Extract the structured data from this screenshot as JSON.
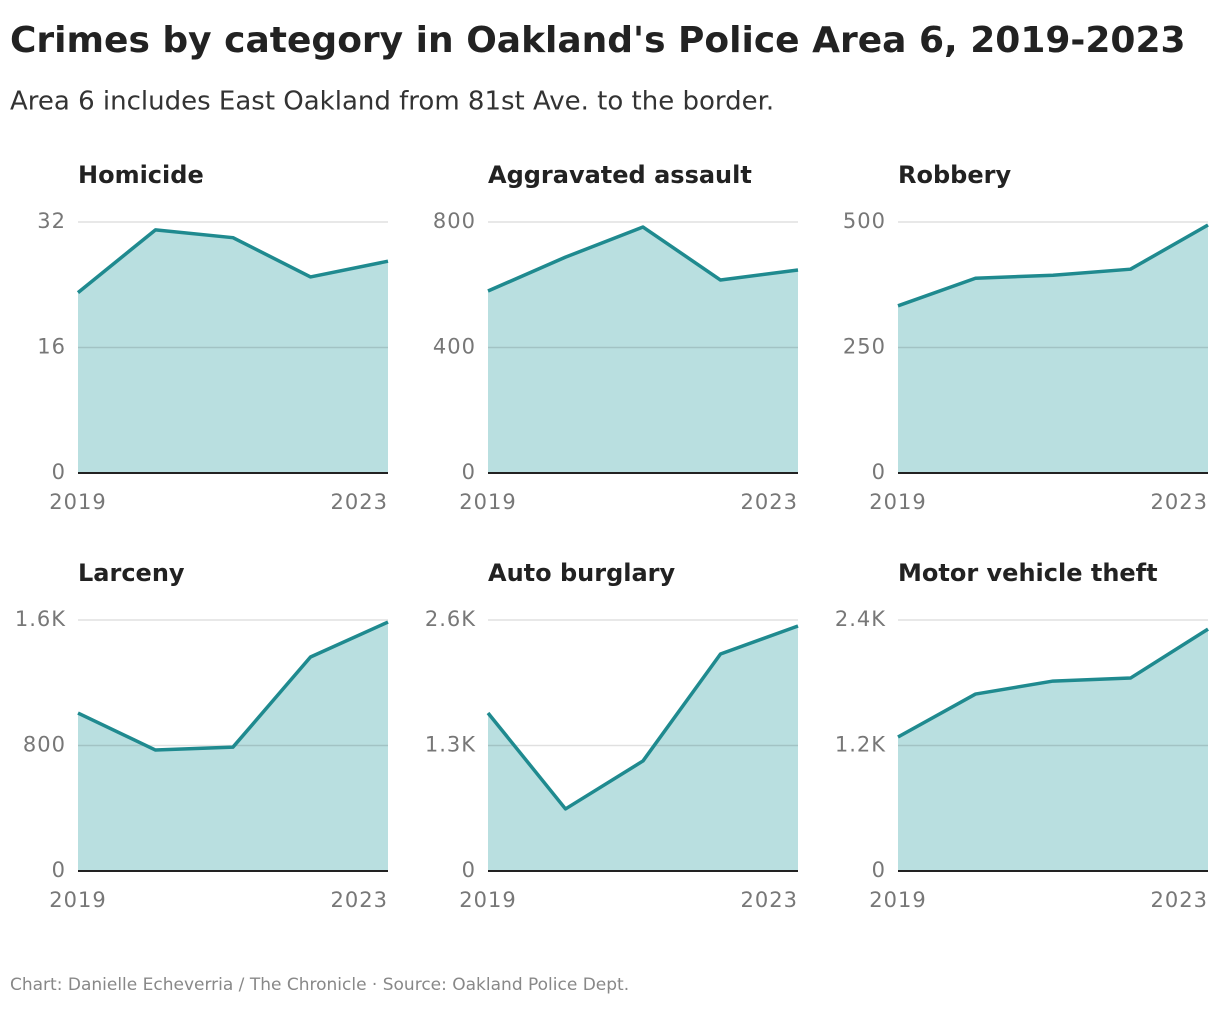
{
  "title": "Crimes by category in Oakland's Police Area 6, 2019-2023",
  "subtitle": "Area 6 includes East Oakland from 81st Ave. to the border.",
  "source": "Chart: Danielle Echeverria / The Chronicle · Source: Oakland Police Dept.",
  "chart_data": [
    {
      "type": "area",
      "title": "Homicide",
      "x": [
        2019,
        2020,
        2021,
        2022,
        2023
      ],
      "values": [
        23,
        31,
        30,
        25,
        27
      ],
      "xlim": [
        2019,
        2023
      ],
      "xticks": [
        2019,
        2023
      ],
      "ylim": [
        0,
        32
      ],
      "yticks": [
        0,
        16,
        32
      ],
      "color": "#1f8a8f",
      "fill": "#b9dfe0",
      "grid": true
    },
    {
      "type": "area",
      "title": "Aggravated assault",
      "x": [
        2019,
        2020,
        2021,
        2022,
        2023
      ],
      "values": [
        580,
        688,
        784,
        615,
        647
      ],
      "xlim": [
        2019,
        2023
      ],
      "xticks": [
        2019,
        2023
      ],
      "ylim": [
        0,
        800
      ],
      "yticks": [
        0,
        400,
        800
      ],
      "color": "#1f8a8f",
      "fill": "#b9dfe0",
      "grid": true
    },
    {
      "type": "area",
      "title": "Robbery",
      "x": [
        2019,
        2020,
        2021,
        2022,
        2023
      ],
      "values": [
        333,
        388,
        394,
        406,
        494
      ],
      "xlim": [
        2019,
        2023
      ],
      "xticks": [
        2019,
        2023
      ],
      "ylim": [
        0,
        500
      ],
      "yticks": [
        0,
        250,
        500
      ],
      "color": "#1f8a8f",
      "fill": "#b9dfe0",
      "grid": true
    },
    {
      "type": "area",
      "title": "Larceny",
      "x": [
        2019,
        2020,
        2021,
        2022,
        2023
      ],
      "values": [
        1007,
        771,
        790,
        1364,
        1587
      ],
      "xlim": [
        2019,
        2023
      ],
      "xticks": [
        2019,
        2023
      ],
      "ylim": [
        0,
        1600
      ],
      "yticks": [
        0,
        800,
        {
          "value": 1600,
          "label": "1.6K"
        }
      ],
      "color": "#1f8a8f",
      "fill": "#b9dfe0",
      "grid": true
    },
    {
      "type": "area",
      "title": "Auto burglary",
      "x": [
        2019,
        2020,
        2021,
        2022,
        2023
      ],
      "values": [
        1637,
        643,
        1140,
        2248,
        2538
      ],
      "xlim": [
        2019,
        2023
      ],
      "xticks": [
        2019,
        2023
      ],
      "ylim": [
        0,
        2600
      ],
      "yticks": [
        0,
        {
          "value": 1300,
          "label": "1.3K"
        },
        {
          "value": 2600,
          "label": "2.6K"
        }
      ],
      "color": "#1f8a8f",
      "fill": "#b9dfe0",
      "grid": true
    },
    {
      "type": "area",
      "title": "Motor vehicle theft",
      "x": [
        2019,
        2020,
        2021,
        2022,
        2023
      ],
      "values": [
        1281,
        1692,
        1816,
        1845,
        2313
      ],
      "xlim": [
        2019,
        2023
      ],
      "xticks": [
        2019,
        2023
      ],
      "ylim": [
        0,
        2400
      ],
      "yticks": [
        0,
        {
          "value": 1200,
          "label": "1.2K"
        },
        {
          "value": 2400,
          "label": "2.4K"
        }
      ],
      "color": "#1f8a8f",
      "fill": "#b9dfe0",
      "grid": true
    }
  ]
}
